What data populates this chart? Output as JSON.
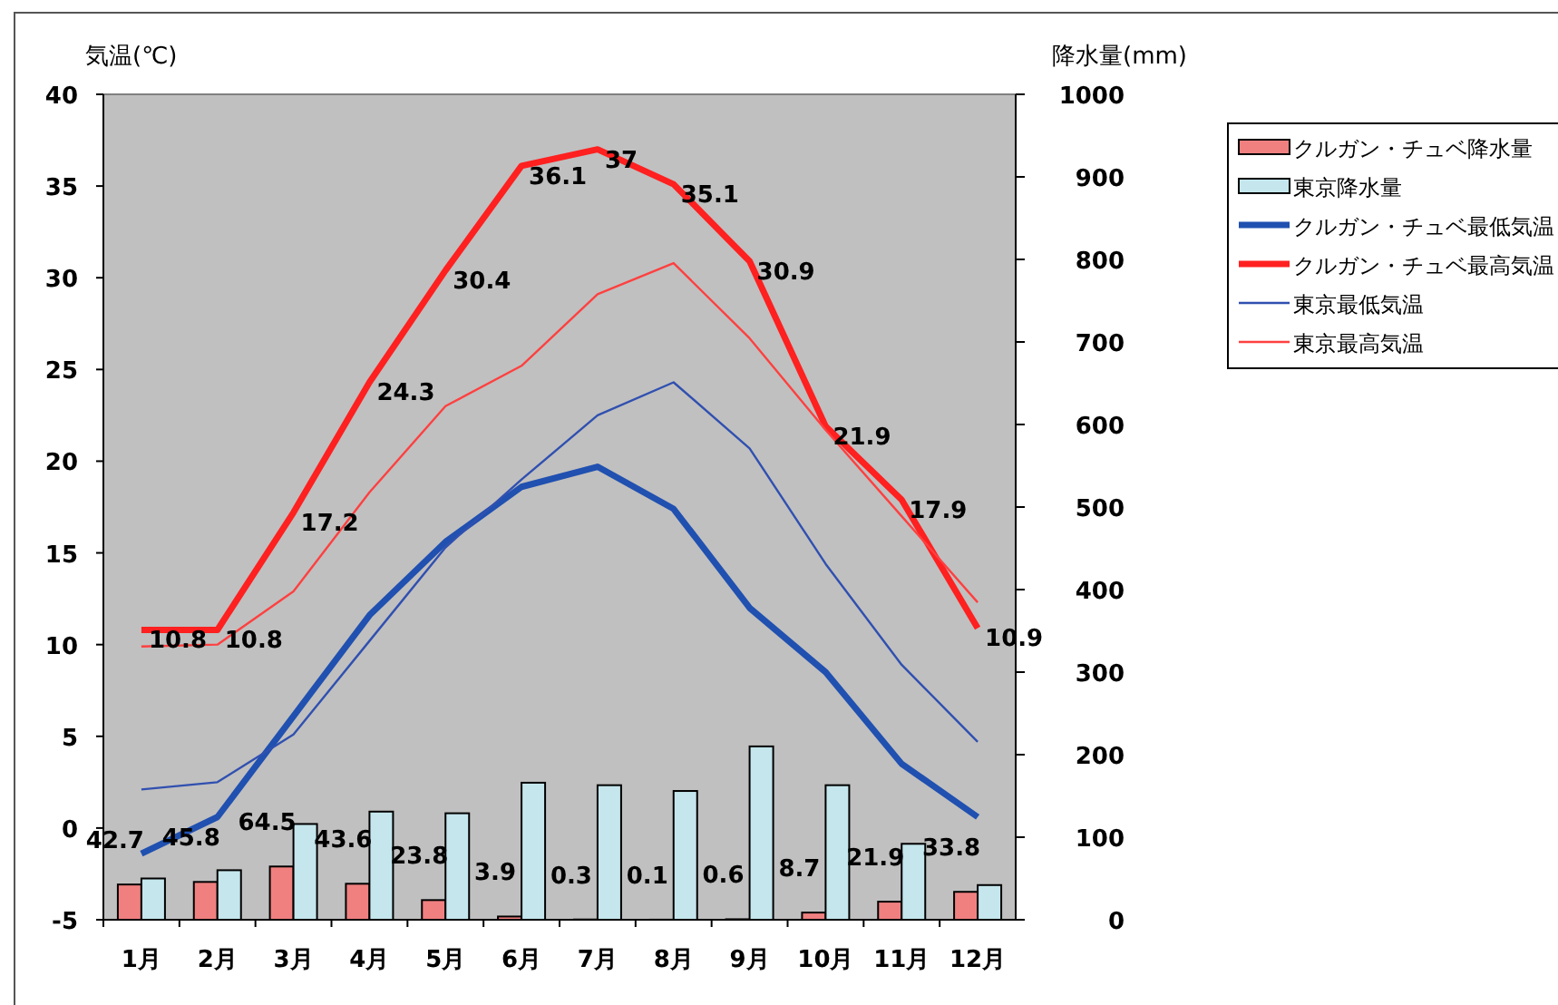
{
  "chart_data": {
    "type": "bar",
    "ylabel": "気温(℃)",
    "y2label": "降水量(mm)",
    "categories": [
      "1月",
      "2月",
      "3月",
      "4月",
      "5月",
      "6月",
      "7月",
      "8月",
      "9月",
      "10月",
      "11月",
      "12月"
    ],
    "ylim": [
      -5,
      40
    ],
    "yticks": [
      -5,
      0,
      5,
      10,
      15,
      20,
      25,
      30,
      35,
      40
    ],
    "y2lim": [
      0,
      1000
    ],
    "y2ticks": [
      0,
      100,
      200,
      300,
      400,
      500,
      600,
      700,
      800,
      900,
      1000
    ],
    "grid": false,
    "legend": "right",
    "series": [
      {
        "name": "クルガン・チュベ降水量",
        "axis": "y2",
        "color": "#f08080",
        "values": [
          42.7,
          45.8,
          64.5,
          43.6,
          23.8,
          3.9,
          0.3,
          0.1,
          0.6,
          8.7,
          21.9,
          33.8
        ],
        "value_labels": [
          "42.7",
          "45.8",
          "64.5",
          "43.6",
          "23.8",
          "3.9",
          "0.3",
          "0.1",
          "0.6",
          "8.7",
          "21.9",
          "33.8"
        ]
      },
      {
        "name": "東京降水量",
        "axis": "y2",
        "color": "#c4e6ec",
        "values": [
          50,
          60,
          116,
          131,
          129,
          166,
          163,
          156,
          210,
          163,
          92,
          42
        ]
      },
      {
        "name": "クルガン・チュベ最低気温",
        "type": "line",
        "color": "#2050b0",
        "values": [
          -1.4,
          0.6,
          6.1,
          11.6,
          15.6,
          18.6,
          19.7,
          17.4,
          12.0,
          8.5,
          3.5,
          0.6
        ]
      },
      {
        "name": "クルガン・チュベ最高気温",
        "type": "line",
        "color": "#ff2020",
        "values": [
          10.8,
          10.8,
          17.2,
          24.3,
          30.4,
          36.1,
          37,
          35.1,
          30.9,
          21.9,
          17.9,
          10.9
        ],
        "value_labels": [
          "10.8",
          "10.8",
          "17.2",
          "24.3",
          "30.4",
          "36.1",
          "37",
          "35.1",
          "30.9",
          "21.9",
          "17.9",
          "10.9"
        ]
      },
      {
        "name": "東京最低気温",
        "type": "line",
        "color": "#3050b0",
        "values": [
          2.1,
          2.5,
          5.1,
          10.2,
          15.3,
          19.0,
          22.5,
          24.3,
          20.7,
          14.4,
          8.9,
          4.7
        ]
      },
      {
        "name": "東京最高気温",
        "type": "line",
        "color": "#ff4040",
        "values": [
          9.9,
          10.0,
          12.9,
          18.3,
          23.0,
          25.2,
          29.1,
          30.8,
          26.7,
          21.7,
          17.0,
          12.3
        ]
      }
    ]
  }
}
